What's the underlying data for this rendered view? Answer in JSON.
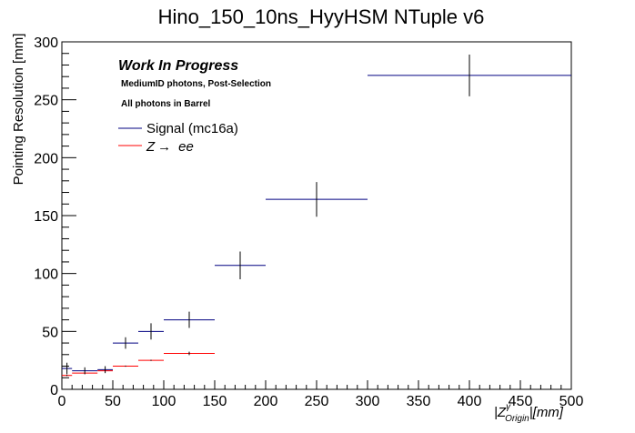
{
  "chart_data": {
    "type": "scatter",
    "title": "Hino_150_10ns_HyyHSM NTuple v6",
    "ylabel": "Pointing Resolution [mm]",
    "xlabel": "|Z",
    "xlabel_superscript": "γ",
    "xlabel_subscript": "Origin",
    "xlabel_unit": "|[mm]",
    "xlim": [
      0,
      500
    ],
    "ylim": [
      0,
      300
    ],
    "x_ticks": [
      "0",
      "50",
      "100",
      "150",
      "200",
      "250",
      "300",
      "350",
      "400",
      "450",
      "500"
    ],
    "y_ticks": [
      "0",
      "50",
      "100",
      "150",
      "200",
      "250",
      "300"
    ],
    "annotations": {
      "work_in_progress": "Work In Progress",
      "selection": "MediumID photons, Post-Selection",
      "region": "All photons in Barrel"
    },
    "series": [
      {
        "name": "Signal (mc16a)",
        "color": "#000080",
        "points": [
          {
            "x": 5,
            "xerr": 5,
            "y": 18,
            "yerr": 5
          },
          {
            "x": 22.5,
            "xerr": 12.5,
            "y": 16,
            "yerr": 3
          },
          {
            "x": 42.5,
            "xerr": 7.5,
            "y": 17,
            "yerr": 3
          },
          {
            "x": 62.5,
            "xerr": 12.5,
            "y": 40,
            "yerr": 5
          },
          {
            "x": 87.5,
            "xerr": 12.5,
            "y": 50,
            "yerr": 7
          },
          {
            "x": 125,
            "xerr": 25,
            "y": 60,
            "yerr": 7
          },
          {
            "x": 175,
            "xerr": 25,
            "y": 107,
            "yerr": 12
          },
          {
            "x": 250,
            "xerr": 50,
            "y": 164,
            "yerr": 15
          },
          {
            "x": 400,
            "xerr": 100,
            "y": 271,
            "yerr": 18
          }
        ]
      },
      {
        "name": "Z → ee",
        "legend_main": "Z",
        "legend_arrow": "→",
        "legend_suffix": "ee",
        "color": "#ff0000",
        "points": [
          {
            "x": 5,
            "xerr": 5,
            "y": 12,
            "yerr": 0.5
          },
          {
            "x": 22.5,
            "xerr": 12.5,
            "y": 14,
            "yerr": 0.5
          },
          {
            "x": 42.5,
            "xerr": 7.5,
            "y": 16,
            "yerr": 0.5
          },
          {
            "x": 62.5,
            "xerr": 12.5,
            "y": 20,
            "yerr": 0.5
          },
          {
            "x": 87.5,
            "xerr": 12.5,
            "y": 25,
            "yerr": 0.5
          },
          {
            "x": 125,
            "xerr": 25,
            "y": 31,
            "yerr": 1.5
          }
        ]
      }
    ]
  }
}
